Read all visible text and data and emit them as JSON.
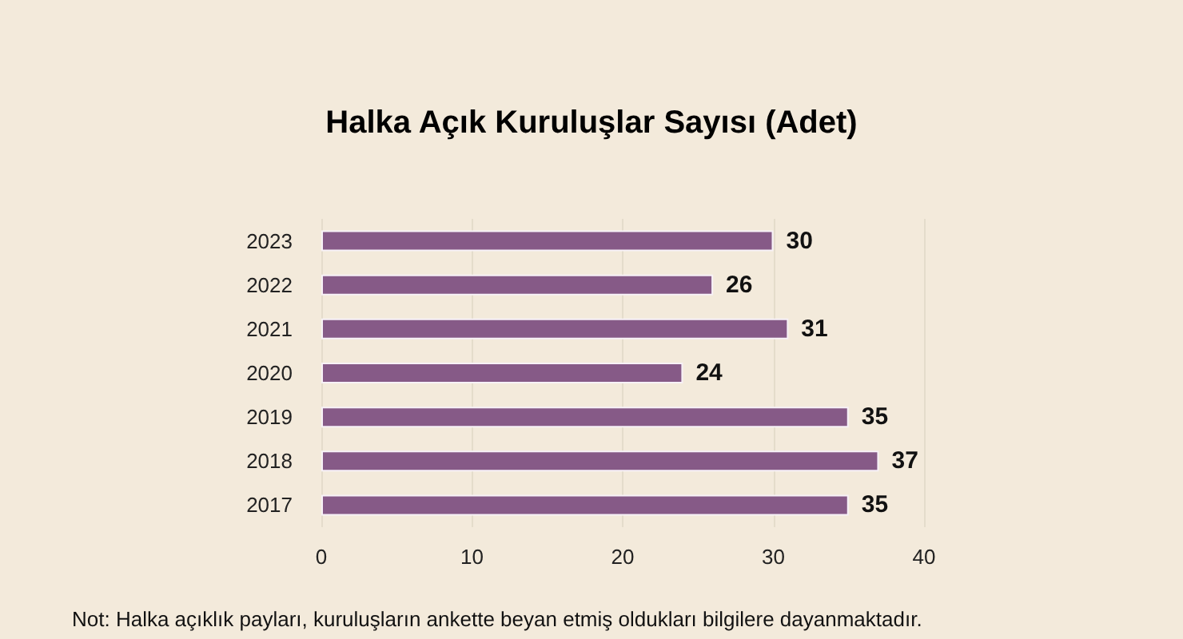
{
  "chart_data": {
    "type": "bar",
    "orientation": "horizontal",
    "title": "Halka Açık Kuruluşlar Sayısı (Adet)",
    "categories": [
      "2023",
      "2022",
      "2021",
      "2020",
      "2019",
      "2018",
      "2017"
    ],
    "values": [
      30,
      26,
      31,
      24,
      35,
      37,
      35
    ],
    "color": "#865a87",
    "xlim": [
      0,
      40
    ],
    "xticks": [
      0,
      10,
      20,
      30,
      40
    ],
    "grid": "x",
    "data_labels": true,
    "annotations": [
      "Not: Halka açıklık payları, kuruluşların ankette beyan etmiş oldukları bilgilere dayanmaktadır."
    ]
  }
}
